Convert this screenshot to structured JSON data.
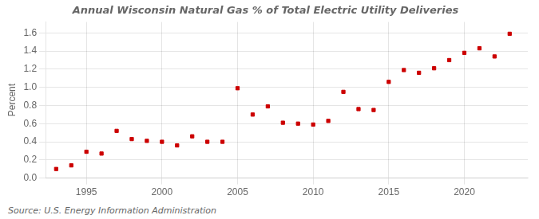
{
  "chart_data": {
    "type": "scatter",
    "title": "Annual Wisconsin Natural Gas % of Total Electric Utility Deliveries",
    "ylabel": "Percent",
    "annotations": [
      "Source: U.S. Energy Information Administration"
    ],
    "x": [
      1993,
      1994,
      1995,
      1996,
      1997,
      1998,
      1999,
      2000,
      2001,
      2002,
      2003,
      2004,
      2005,
      2006,
      2007,
      2008,
      2009,
      2010,
      2011,
      2012,
      2013,
      2014,
      2015,
      2016,
      2017,
      2018,
      2019,
      2020,
      2021,
      2022,
      2023
    ],
    "values": [
      0.1,
      0.14,
      0.29,
      0.27,
      0.52,
      0.43,
      0.41,
      0.4,
      0.36,
      0.46,
      0.4,
      0.4,
      0.99,
      0.7,
      0.79,
      0.61,
      0.6,
      0.59,
      0.63,
      0.95,
      0.76,
      0.75,
      1.06,
      1.19,
      1.16,
      1.21,
      1.3,
      1.38,
      1.43,
      1.34,
      1.59
    ],
    "color": "#cc0000",
    "marker": "square",
    "xlim": [
      1992.3,
      2024.2
    ],
    "ylim": [
      0.0,
      1.72
    ],
    "xticks": [
      1995,
      2000,
      2005,
      2010,
      2015,
      2020
    ],
    "yticks": [
      {
        "value": 0.0,
        "label": "0.0"
      },
      0.2,
      0.4,
      0.6,
      0.8,
      {
        "value": 1.0,
        "label": "1.0"
      },
      1.2,
      1.4,
      1.6
    ],
    "grid": true
  }
}
